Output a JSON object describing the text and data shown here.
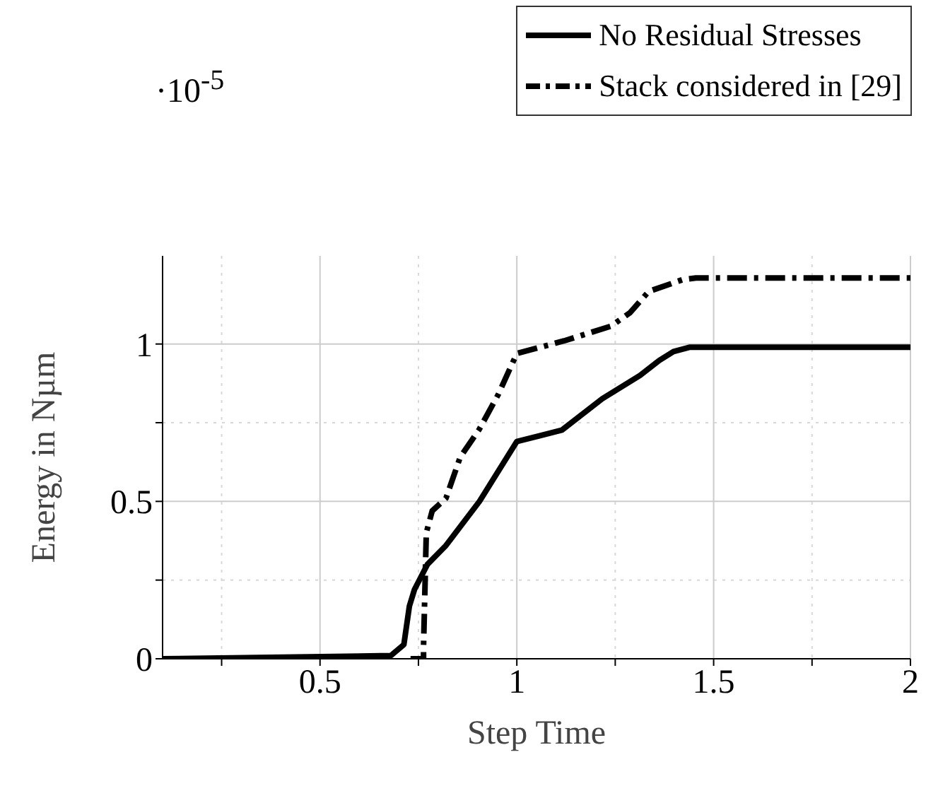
{
  "chart_data": {
    "type": "line",
    "xlabel": "Step Time",
    "ylabel": "Energy in Nµm",
    "annotations": [
      "·10$^{-5}$"
    ],
    "xlim": [
      0.1,
      2
    ],
    "xticks": [
      {
        "value": 0.25,
        "label": null
      },
      0.5,
      {
        "value": 0.75,
        "label": null
      },
      1,
      {
        "value": 1.25,
        "label": null
      },
      1.5,
      {
        "value": 1.75,
        "label": null
      },
      2
    ],
    "ylim": [
      0,
      1.28
    ],
    "yticks": [
      0,
      {
        "value": 0.25,
        "label": null
      },
      0.5,
      {
        "value": 0.75,
        "label": null
      },
      1
    ],
    "grid": true,
    "legend": "top right",
    "marker": "none",
    "series": [
      {
        "name": "No Residual Stresses",
        "color": "#000000",
        "line_style": "solid",
        "x": [
          0.1,
          0.68,
          0.713,
          0.727,
          0.74,
          0.773,
          0.82,
          0.905,
          1.0,
          1.115,
          1.217,
          1.313,
          1.362,
          1.398,
          1.44,
          2
        ],
        "values": [
          0,
          0.01,
          0.045,
          0.167,
          0.22,
          0.3,
          0.36,
          0.5,
          0.69,
          0.727,
          0.826,
          0.9,
          0.948,
          0.976,
          0.99,
          0.99
        ]
      },
      {
        "name": "Stack considered in [29]",
        "color": "#000000",
        "line_style": "dashed",
        "x": [
          0.73,
          0.763,
          0.763,
          0.77,
          0.785,
          0.82,
          0.856,
          0.905,
          0.953,
          1.0,
          1.12,
          1.24,
          1.288,
          1.335,
          1.42,
          1.455,
          2
        ],
        "values": [
          0,
          0,
          0.04,
          0.4,
          0.47,
          0.51,
          0.64,
          0.73,
          0.84,
          0.97,
          1.01,
          1.057,
          1.1,
          1.167,
          1.204,
          1.21,
          1.21
        ]
      }
    ]
  }
}
